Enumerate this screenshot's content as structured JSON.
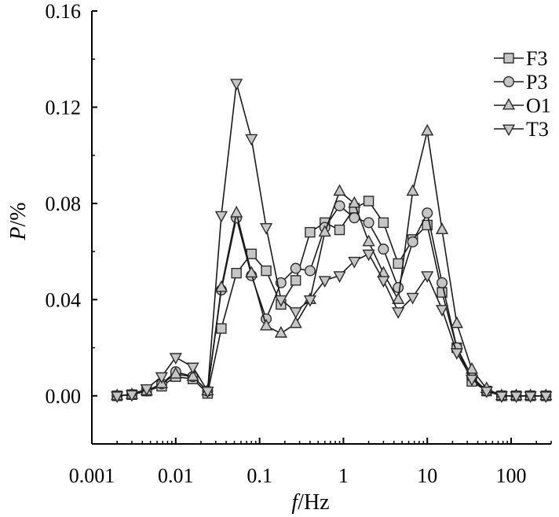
{
  "chart_data": {
    "type": "line",
    "xscale": "log",
    "xlim": [
      0.001,
      300
    ],
    "ylim": [
      -0.02,
      0.16
    ],
    "xticks": [
      {
        "value": 0.001,
        "label": "0.001"
      },
      {
        "value": 0.01,
        "label": "0.01"
      },
      {
        "value": 0.1,
        "label": "0.1"
      },
      {
        "value": 1,
        "label": "1"
      },
      {
        "value": 10,
        "label": "10"
      },
      {
        "value": 100,
        "label": "100"
      }
    ],
    "yticks": [
      {
        "value": 0.0,
        "label": "0.00"
      },
      {
        "value": 0.04,
        "label": "0.04"
      },
      {
        "value": 0.08,
        "label": "0.08"
      },
      {
        "value": 0.12,
        "label": "0.12"
      },
      {
        "value": 0.16,
        "label": "0.16"
      }
    ],
    "xlabel_italic": "f",
    "xlabel_rest": "/Hz",
    "ylabel_italic": "P",
    "ylabel_rest": "/%",
    "legend_position": "top-right",
    "grid": false,
    "x": [
      0.002,
      0.003,
      0.0045,
      0.0068,
      0.01,
      0.016,
      0.024,
      0.035,
      0.053,
      0.08,
      0.12,
      0.18,
      0.27,
      0.4,
      0.6,
      0.9,
      1.35,
      2.0,
      3.0,
      4.5,
      6.7,
      10,
      15,
      22.5,
      34,
      51,
      77,
      115,
      170,
      260
    ],
    "series": [
      {
        "name": "F3",
        "marker": "square",
        "values": [
          0.0,
          0.0005,
          0.002,
          0.004,
          0.008,
          0.007,
          0.001,
          0.028,
          0.051,
          0.059,
          0.052,
          0.038,
          0.048,
          0.068,
          0.072,
          0.069,
          0.078,
          0.081,
          0.072,
          0.055,
          0.065,
          0.071,
          0.043,
          0.02,
          0.006,
          0.002,
          0.0,
          0.0,
          0.0,
          0.0
        ]
      },
      {
        "name": "P3",
        "marker": "circle",
        "values": [
          0.0,
          0.0005,
          0.002,
          0.005,
          0.01,
          0.008,
          0.002,
          0.044,
          0.074,
          0.05,
          0.032,
          0.047,
          0.053,
          0.052,
          0.07,
          0.079,
          0.074,
          0.072,
          0.061,
          0.045,
          0.064,
          0.076,
          0.047,
          0.02,
          0.008,
          0.002,
          0.0,
          0.0,
          0.0,
          0.0
        ]
      },
      {
        "name": "O1",
        "marker": "triangle-up",
        "values": [
          0.0,
          0.0005,
          0.002,
          0.005,
          0.009,
          0.008,
          0.002,
          0.045,
          0.076,
          0.051,
          0.029,
          0.026,
          0.03,
          0.04,
          0.068,
          0.085,
          0.08,
          0.064,
          0.051,
          0.04,
          0.085,
          0.11,
          0.069,
          0.03,
          0.011,
          0.003,
          0.0,
          0.0,
          0.0,
          0.0
        ]
      },
      {
        "name": "T3",
        "marker": "triangle-down",
        "values": [
          0.0,
          0.0005,
          0.003,
          0.008,
          0.016,
          0.012,
          0.002,
          0.075,
          0.13,
          0.107,
          0.07,
          0.04,
          0.035,
          0.04,
          0.048,
          0.05,
          0.056,
          0.059,
          0.048,
          0.035,
          0.041,
          0.05,
          0.036,
          0.018,
          0.007,
          0.002,
          0.0,
          0.0,
          0.0,
          0.0
        ]
      }
    ]
  }
}
